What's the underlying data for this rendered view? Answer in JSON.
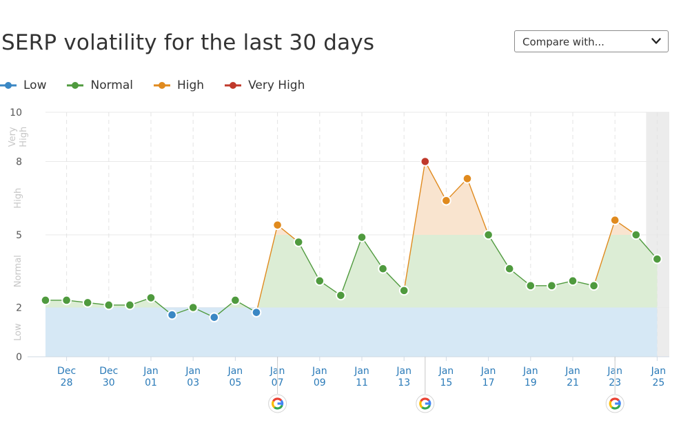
{
  "header": {
    "title": "SERP volatility for the last 30 days",
    "compare_label": "Compare with..."
  },
  "icons": {
    "dropdown": "chevron-down-icon",
    "google": "google-icon"
  },
  "colors": {
    "low": "#3a87c4",
    "normal": "#4f9a3e",
    "high": "#e08a1e",
    "very_high": "#c0392b",
    "low_fill": "#d6e8f5",
    "normal_fill": "#dcedd5",
    "high_fill": "#f9e4cf",
    "axis_label": "#2a7ab8"
  },
  "legend": [
    {
      "key": "low",
      "label": "Low",
      "color": "#3a87c4"
    },
    {
      "key": "normal",
      "label": "Normal",
      "color": "#4f9a3e"
    },
    {
      "key": "high",
      "label": "High",
      "color": "#e08a1e"
    },
    {
      "key": "very_high",
      "label": "Very High",
      "color": "#c0392b"
    }
  ],
  "chart_data": {
    "type": "line",
    "title": "SERP volatility for the last 30 days",
    "ylim": [
      0,
      10
    ],
    "y_ticks": [
      0,
      2,
      5,
      8,
      10
    ],
    "bands": [
      {
        "label": "Low",
        "from": 0,
        "to": 2
      },
      {
        "label": "Normal",
        "from": 2,
        "to": 5
      },
      {
        "label": "High",
        "from": 5,
        "to": 8
      },
      {
        "label": "Very High",
        "from": 8,
        "to": 10
      }
    ],
    "x": [
      "Dec 27",
      "Dec 28",
      "Dec 29",
      "Dec 30",
      "Dec 31",
      "Jan 01",
      "Jan 02",
      "Jan 03",
      "Jan 04",
      "Jan 05",
      "Jan 06",
      "Jan 07",
      "Jan 08",
      "Jan 09",
      "Jan 10",
      "Jan 11",
      "Jan 12",
      "Jan 13",
      "Jan 14",
      "Jan 15",
      "Jan 16",
      "Jan 17",
      "Jan 18",
      "Jan 19",
      "Jan 20",
      "Jan 21",
      "Jan 22",
      "Jan 23",
      "Jan 24",
      "Jan 25"
    ],
    "x_tick_labels": [
      {
        "date": "Dec 28",
        "month": "Dec",
        "day": "28"
      },
      {
        "date": "Dec 30",
        "month": "Dec",
        "day": "30"
      },
      {
        "date": "Jan 01",
        "month": "Jan",
        "day": "01"
      },
      {
        "date": "Jan 03",
        "month": "Jan",
        "day": "03"
      },
      {
        "date": "Jan 05",
        "month": "Jan",
        "day": "05"
      },
      {
        "date": "Jan 07",
        "month": "Jan",
        "day": "07"
      },
      {
        "date": "Jan 09",
        "month": "Jan",
        "day": "09"
      },
      {
        "date": "Jan 11",
        "month": "Jan",
        "day": "11"
      },
      {
        "date": "Jan 13",
        "month": "Jan",
        "day": "13"
      },
      {
        "date": "Jan 15",
        "month": "Jan",
        "day": "15"
      },
      {
        "date": "Jan 17",
        "month": "Jan",
        "day": "17"
      },
      {
        "date": "Jan 19",
        "month": "Jan",
        "day": "19"
      },
      {
        "date": "Jan 21",
        "month": "Jan",
        "day": "21"
      },
      {
        "date": "Jan 23",
        "month": "Jan",
        "day": "23"
      },
      {
        "date": "Jan 25",
        "month": "Jan",
        "day": "25"
      }
    ],
    "values": [
      2.3,
      2.3,
      2.2,
      2.1,
      2.1,
      2.4,
      1.7,
      2.0,
      1.6,
      2.3,
      1.8,
      5.4,
      4.7,
      3.1,
      2.5,
      4.9,
      3.6,
      2.7,
      8.0,
      6.4,
      7.3,
      5.0,
      3.6,
      2.9,
      2.9,
      3.1,
      2.9,
      5.6,
      5.0,
      4.0
    ],
    "google_updates": [
      "Jan 07",
      "Jan 14",
      "Jan 23"
    ],
    "highlighted": "Jan 25",
    "grid": true
  }
}
